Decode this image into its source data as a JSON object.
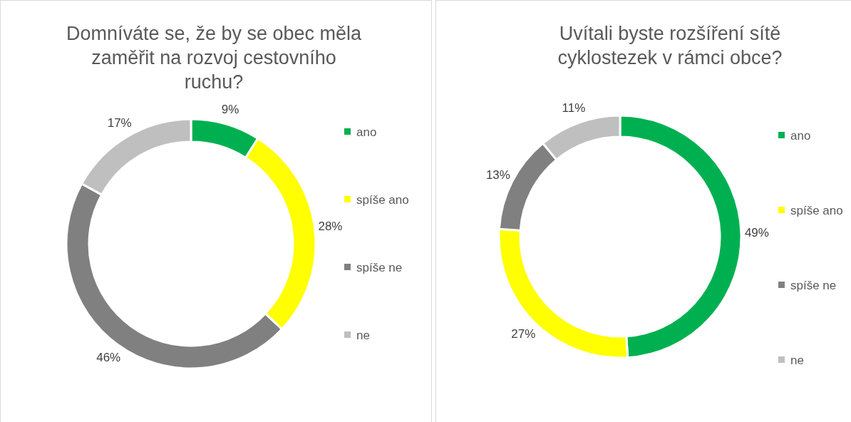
{
  "chart_data": [
    {
      "type": "donut",
      "title": "Domníváte se, že by se obec měla zaměřit na rozvoj cestovního ruchu?",
      "categories": [
        "ano",
        "spíše ano",
        "spíše ne",
        "ne"
      ],
      "values": [
        9,
        28,
        46,
        17
      ],
      "colors": [
        "#00b050",
        "#ffff00",
        "#808080",
        "#bfbfbf"
      ],
      "value_labels": [
        "9%",
        "28%",
        "46%",
        "17%"
      ],
      "legend": "right"
    },
    {
      "type": "donut",
      "title": "Uvítali byste rozšíření sítě cyklostezek v rámci obce?",
      "categories": [
        "ano",
        "spíše ano",
        "spíše ne",
        "ne"
      ],
      "values": [
        49,
        27,
        13,
        11
      ],
      "colors": [
        "#00b050",
        "#ffff00",
        "#808080",
        "#bfbfbf"
      ],
      "value_labels": [
        "49%",
        "27%",
        "13%",
        "11%"
      ],
      "legend": "right"
    }
  ]
}
